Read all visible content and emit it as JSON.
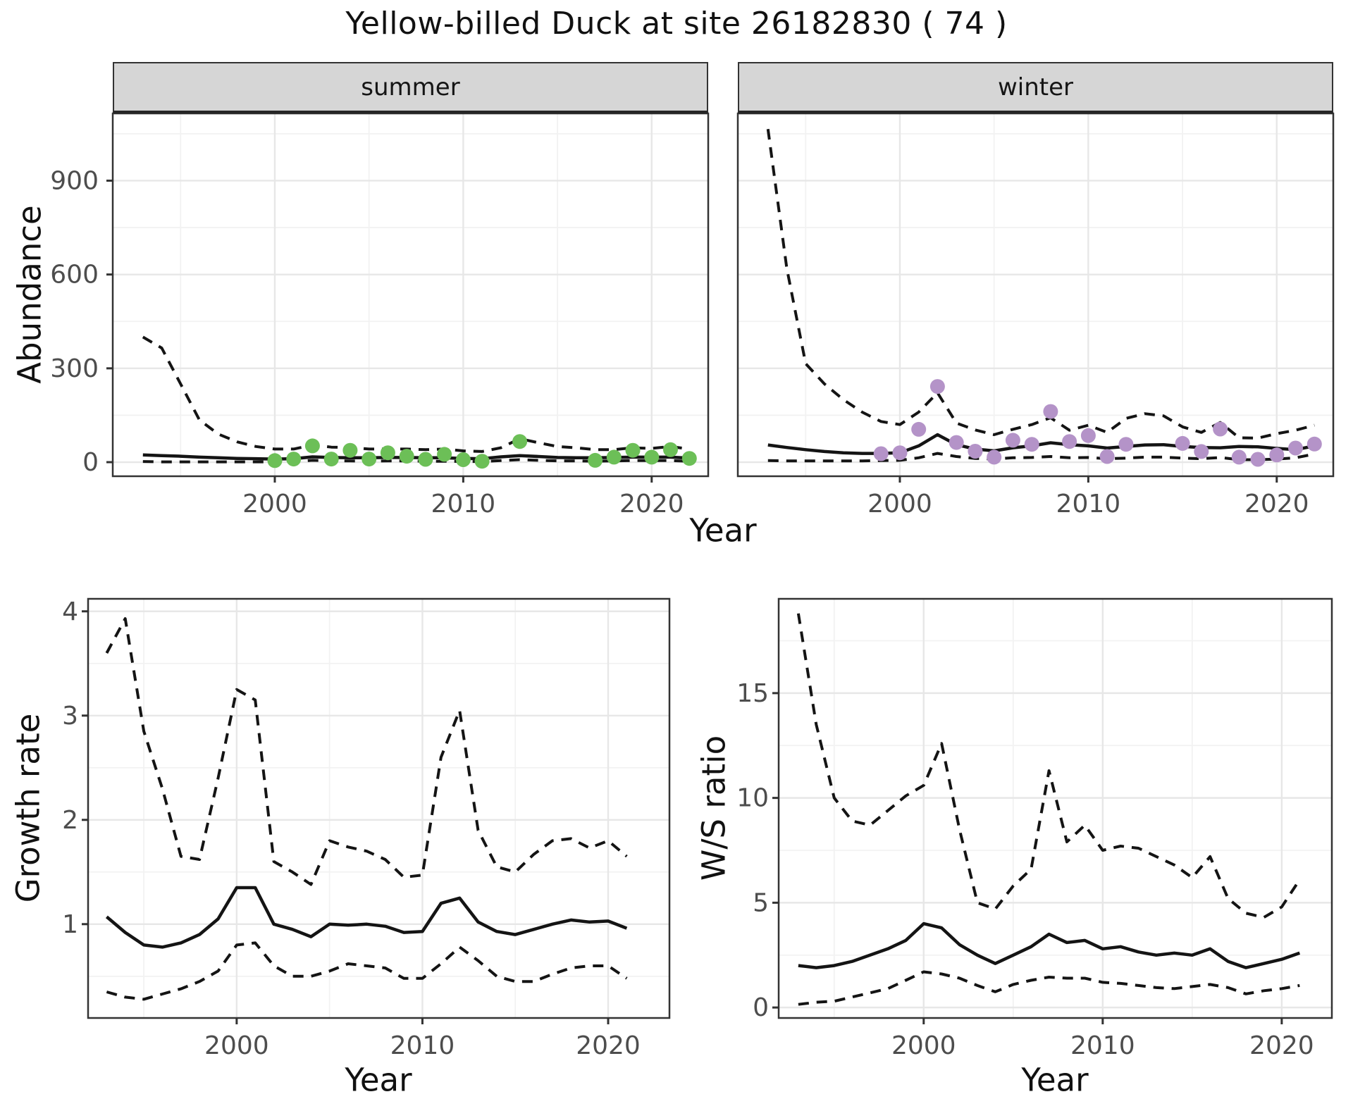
{
  "labels": {
    "title": "Yellow-billed Duck at site 26182830 ( 74 )",
    "year_axis": "Year",
    "abundance_axis": "Abundance",
    "growth_axis": "Growth rate",
    "ws_axis": "W/S ratio",
    "facet_summer": "summer",
    "facet_winter": "winter"
  },
  "colors": {
    "summer_point": "#6cbf57",
    "winter_point": "#b493c8",
    "line": "#141414",
    "strip_bg": "#d6d6d6",
    "panel_border": "#333333",
    "grid_major": "#e7e7e7",
    "grid_minor": "#f2f2f2",
    "tick_label": "#4d4d4d"
  },
  "chart_data": [
    {
      "id": "abundance-summer",
      "type": "line+scatter",
      "facet": "summer",
      "xlabel": "Year",
      "ylabel": "Abundance",
      "xlim": [
        1991.4,
        2023.0
      ],
      "ylim": [
        -45,
        1115
      ],
      "x_ticks": [
        2000,
        2010,
        2020
      ],
      "x_minor": [
        1995,
        2005,
        2015
      ],
      "y_ticks": [
        0,
        300,
        600,
        900
      ],
      "y_minor": [
        150,
        450,
        750,
        1050
      ],
      "line_years": [
        1993,
        1994,
        1995,
        1996,
        1997,
        1998,
        1999,
        2000,
        2001,
        2002,
        2003,
        2004,
        2005,
        2006,
        2007,
        2008,
        2009,
        2010,
        2011,
        2012,
        2013,
        2014,
        2015,
        2016,
        2017,
        2018,
        2019,
        2020,
        2021,
        2022
      ],
      "series": [
        {
          "name": "upper_95ci",
          "style": "dashed",
          "values": [
            400,
            365,
            250,
            135,
            90,
            65,
            50,
            42,
            42,
            55,
            48,
            47,
            42,
            42,
            42,
            40,
            42,
            36,
            34,
            46,
            75,
            62,
            50,
            46,
            40,
            40,
            46,
            44,
            50,
            42
          ]
        },
        {
          "name": "median",
          "style": "solid",
          "values": [
            23,
            21,
            19,
            16,
            14,
            12,
            11,
            10,
            11,
            17,
            15,
            14,
            14,
            15,
            15,
            14,
            14,
            12,
            11,
            17,
            21,
            18,
            15,
            14,
            14,
            15,
            16,
            16,
            16,
            13
          ]
        },
        {
          "name": "lower_95ci",
          "style": "dashed",
          "values": [
            2,
            1,
            1,
            1,
            1,
            1,
            1,
            1,
            2,
            6,
            4,
            4,
            3,
            4,
            4,
            3,
            3,
            2,
            2,
            5,
            8,
            6,
            4,
            4,
            3,
            4,
            5,
            5,
            5,
            3
          ]
        }
      ],
      "points": {
        "color_key": "summer_point",
        "years": [
          2000,
          2001,
          2002,
          2003,
          2004,
          2005,
          2006,
          2007,
          2008,
          2009,
          2010,
          2011,
          2013,
          2017,
          2018,
          2019,
          2020,
          2021,
          2022
        ],
        "values": [
          5,
          10,
          52,
          10,
          38,
          10,
          30,
          19,
          9,
          25,
          8,
          3,
          66,
          6,
          16,
          38,
          16,
          40,
          12
        ]
      }
    },
    {
      "id": "abundance-winter",
      "type": "line+scatter",
      "facet": "winter",
      "xlabel": "Year",
      "ylabel": "Abundance",
      "xlim": [
        1991.4,
        2023.0
      ],
      "ylim": [
        -45,
        1115
      ],
      "x_ticks": [
        2000,
        2010,
        2020
      ],
      "x_minor": [
        1995,
        2005,
        2015
      ],
      "y_ticks": [
        0,
        300,
        600,
        900
      ],
      "y_minor": [
        150,
        450,
        750,
        1050
      ],
      "line_years": [
        1993,
        1994,
        1995,
        1996,
        1997,
        1998,
        1999,
        2000,
        2001,
        2002,
        2003,
        2004,
        2005,
        2006,
        2007,
        2008,
        2009,
        2010,
        2011,
        2012,
        2013,
        2014,
        2015,
        2016,
        2017,
        2018,
        2019,
        2020,
        2021,
        2022
      ],
      "series": [
        {
          "name": "upper_95ci",
          "style": "dashed",
          "values": [
            1065,
            620,
            315,
            250,
            200,
            160,
            130,
            120,
            160,
            222,
            125,
            103,
            88,
            105,
            120,
            142,
            102,
            118,
            95,
            140,
            155,
            148,
            113,
            95,
            127,
            78,
            77,
            91,
            102,
            118
          ]
        },
        {
          "name": "median",
          "style": "solid",
          "values": [
            55,
            47,
            40,
            34,
            30,
            28,
            28,
            30,
            52,
            88,
            56,
            42,
            36,
            46,
            52,
            62,
            56,
            52,
            45,
            50,
            55,
            56,
            50,
            47,
            46,
            50,
            49,
            44,
            40,
            52
          ]
        },
        {
          "name": "lower_95ci",
          "style": "dashed",
          "values": [
            5,
            4,
            4,
            4,
            4,
            4,
            5,
            6,
            14,
            28,
            18,
            12,
            10,
            14,
            15,
            18,
            14,
            15,
            11,
            13,
            16,
            16,
            13,
            11,
            15,
            8,
            8,
            10,
            14,
            26
          ]
        }
      ],
      "points": {
        "color_key": "winter_point",
        "years": [
          1999,
          2000,
          2001,
          2002,
          2003,
          2004,
          2005,
          2006,
          2007,
          2008,
          2009,
          2010,
          2011,
          2012,
          2015,
          2016,
          2017,
          2018,
          2019,
          2020,
          2021,
          2022
        ],
        "values": [
          27,
          30,
          105,
          242,
          63,
          35,
          16,
          70,
          57,
          162,
          66,
          85,
          18,
          57,
          60,
          34,
          106,
          16,
          9,
          23,
          45,
          58
        ]
      }
    },
    {
      "id": "growth-rate",
      "type": "line",
      "facet": null,
      "xlabel": "Year",
      "ylabel": "Growth rate",
      "xlim": [
        1992.0,
        2023.3
      ],
      "ylim": [
        0.1,
        4.12
      ],
      "x_ticks": [
        2000,
        2010,
        2020
      ],
      "x_minor": [
        1995,
        2005,
        2015
      ],
      "y_ticks": [
        1,
        2,
        3,
        4
      ],
      "y_minor": [
        0.5,
        1.5,
        2.5,
        3.5
      ],
      "line_years": [
        1993,
        1994,
        1995,
        1996,
        1997,
        1998,
        1999,
        2000,
        2001,
        2002,
        2003,
        2004,
        2005,
        2006,
        2007,
        2008,
        2009,
        2010,
        2011,
        2012,
        2013,
        2014,
        2015,
        2016,
        2017,
        2018,
        2019,
        2020,
        2021
      ],
      "series": [
        {
          "name": "upper_95ci",
          "style": "dashed",
          "values": [
            3.6,
            3.93,
            2.85,
            2.3,
            1.65,
            1.62,
            2.4,
            3.25,
            3.15,
            1.6,
            1.5,
            1.38,
            1.8,
            1.74,
            1.7,
            1.62,
            1.45,
            1.47,
            2.6,
            3.05,
            1.9,
            1.55,
            1.5,
            1.67,
            1.8,
            1.82,
            1.73,
            1.8,
            1.65
          ]
        },
        {
          "name": "median",
          "style": "solid",
          "values": [
            1.07,
            0.92,
            0.8,
            0.78,
            0.82,
            0.9,
            1.05,
            1.35,
            1.35,
            1.0,
            0.95,
            0.88,
            1.0,
            0.99,
            1.0,
            0.98,
            0.92,
            0.93,
            1.2,
            1.25,
            1.02,
            0.93,
            0.9,
            0.95,
            1.0,
            1.04,
            1.02,
            1.03,
            0.96
          ]
        },
        {
          "name": "lower_95ci",
          "style": "dashed",
          "values": [
            0.35,
            0.3,
            0.28,
            0.33,
            0.38,
            0.45,
            0.55,
            0.8,
            0.82,
            0.6,
            0.5,
            0.5,
            0.55,
            0.62,
            0.6,
            0.58,
            0.48,
            0.48,
            0.62,
            0.78,
            0.65,
            0.5,
            0.45,
            0.45,
            0.52,
            0.58,
            0.6,
            0.6,
            0.48
          ]
        }
      ],
      "points": null
    },
    {
      "id": "ws-ratio",
      "type": "line",
      "facet": null,
      "xlabel": "Year",
      "ylabel": "W/S ratio",
      "xlim": [
        1991.9,
        2022.8
      ],
      "ylim": [
        -0.5,
        19.5
      ],
      "x_ticks": [
        2000,
        2010,
        2020
      ],
      "x_minor": [
        1995,
        2005,
        2015
      ],
      "y_ticks": [
        0,
        5,
        10,
        15
      ],
      "y_minor": [
        2.5,
        7.5,
        12.5,
        17.5
      ],
      "line_years": [
        1993,
        1994,
        1995,
        1996,
        1997,
        1998,
        1999,
        2000,
        2001,
        2002,
        2003,
        2004,
        2005,
        2006,
        2007,
        2008,
        2009,
        2010,
        2011,
        2012,
        2013,
        2014,
        2015,
        2016,
        2017,
        2018,
        2019,
        2020,
        2021
      ],
      "series": [
        {
          "name": "upper_95ci",
          "style": "dashed",
          "values": [
            18.8,
            13.5,
            10.0,
            8.9,
            8.7,
            9.4,
            10.1,
            10.6,
            12.6,
            8.5,
            5.0,
            4.7,
            5.8,
            6.6,
            11.3,
            7.9,
            8.7,
            7.5,
            7.7,
            7.6,
            7.2,
            6.8,
            6.2,
            7.2,
            5.2,
            4.5,
            4.3,
            4.8,
            6.1
          ]
        },
        {
          "name": "median",
          "style": "solid",
          "values": [
            2.0,
            1.9,
            2.0,
            2.2,
            2.5,
            2.8,
            3.2,
            4.0,
            3.8,
            3.0,
            2.5,
            2.1,
            2.5,
            2.9,
            3.5,
            3.1,
            3.2,
            2.8,
            2.9,
            2.65,
            2.5,
            2.6,
            2.5,
            2.8,
            2.2,
            1.9,
            2.1,
            2.3,
            2.6
          ]
        },
        {
          "name": "lower_95ci",
          "style": "dashed",
          "values": [
            0.15,
            0.25,
            0.3,
            0.5,
            0.7,
            0.9,
            1.3,
            1.7,
            1.6,
            1.4,
            1.05,
            0.75,
            1.1,
            1.3,
            1.45,
            1.4,
            1.4,
            1.2,
            1.15,
            1.05,
            0.95,
            0.9,
            1.0,
            1.1,
            0.95,
            0.65,
            0.8,
            0.9,
            1.05
          ]
        }
      ],
      "points": null
    }
  ]
}
